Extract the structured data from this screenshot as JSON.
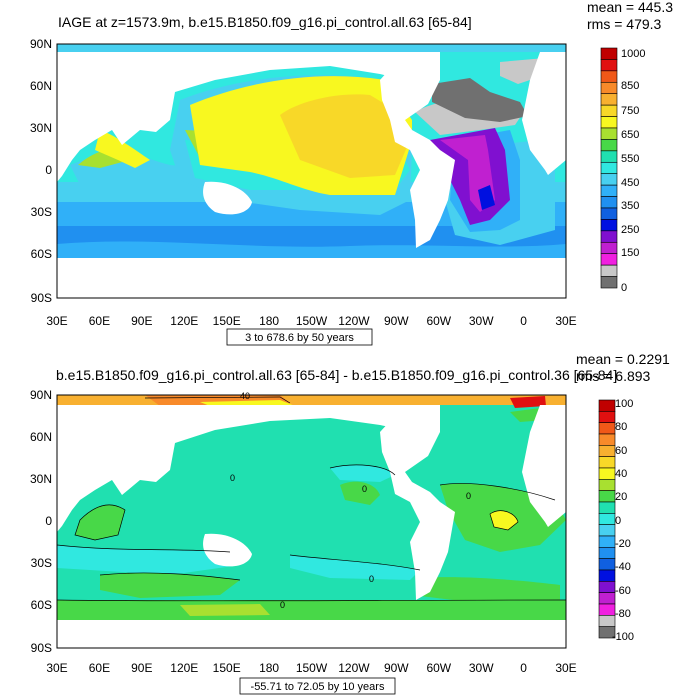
{
  "chart_data": [
    {
      "type": "heatmap",
      "title": "IAGE at z=1573.9m, b.e15.B1850.f09_g16.pi_control.all.63 [65-84]",
      "stats": {
        "mean": "mean = 445.3",
        "rms": "rms = 479.3"
      },
      "x_ticks": [
        "30E",
        "60E",
        "90E",
        "120E",
        "150E",
        "180",
        "150W",
        "120W",
        "90W",
        "60W",
        "30W",
        "0",
        "30E"
      ],
      "y_ticks": [
        "90N",
        "60N",
        "30N",
        "0",
        "30S",
        "60S",
        "90S"
      ],
      "xlim": [
        30,
        390
      ],
      "ylim": [
        -90,
        90
      ],
      "range_label": "3 to 678.6 by 50 years",
      "colorbar": {
        "labels": [
          "1000",
          "850",
          "750",
          "650",
          "550",
          "450",
          "350",
          "250",
          "150",
          "0"
        ],
        "colors": [
          "#c00000",
          "#e01010",
          "#f05818",
          "#f88a2a",
          "#f8b030",
          "#f8d828",
          "#f8f820",
          "#a8e030",
          "#48d848",
          "#20e0b0",
          "#30e8e0",
          "#48d0f0",
          "#30b0f8",
          "#2090f0",
          "#1060e0",
          "#0010e0",
          "#8010d0",
          "#c020d0",
          "#f020e0",
          "#c8c8c8",
          "#707070"
        ]
      }
    },
    {
      "type": "heatmap",
      "title": "b.e15.B1850.f09_g16.pi_control.all.63 [65-84] - b.e15.B1850.f09_g16.pi_control.36 [65-84]",
      "stats": {
        "mean": "mean = 0.2291",
        "rms": "rms = 6.893"
      },
      "x_ticks": [
        "30E",
        "60E",
        "90E",
        "120E",
        "150E",
        "180",
        "150W",
        "120W",
        "90W",
        "60W",
        "30W",
        "0",
        "30E"
      ],
      "y_ticks": [
        "90N",
        "60N",
        "30N",
        "0",
        "30S",
        "60S",
        "90S"
      ],
      "xlim": [
        30,
        390
      ],
      "ylim": [
        -90,
        90
      ],
      "range_label": "-55.71 to 72.05 by 10 years",
      "contour_labels": [
        "40",
        "0",
        "0",
        "0",
        "0",
        "0"
      ],
      "colorbar": {
        "labels": [
          "100",
          "80",
          "60",
          "40",
          "20",
          "0",
          "-20",
          "-40",
          "-60",
          "-80",
          "-100"
        ],
        "colors": [
          "#c00000",
          "#e01010",
          "#f05818",
          "#f88a2a",
          "#f8b030",
          "#f8d828",
          "#f8f820",
          "#a8e030",
          "#48d848",
          "#20e0b0",
          "#30e8e0",
          "#48d0f0",
          "#30b0f8",
          "#2090f0",
          "#1060e0",
          "#0010e0",
          "#8010d0",
          "#c020d0",
          "#f020e0",
          "#c8c8c8",
          "#707070"
        ]
      }
    }
  ]
}
